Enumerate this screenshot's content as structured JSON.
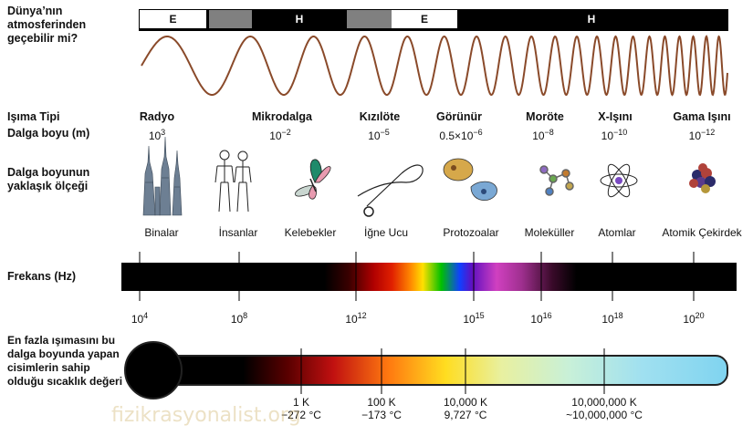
{
  "atmosphere": {
    "question": "Dünya’nın atmosferinden geçebilir mi?",
    "bands": [
      "E",
      "",
      "H",
      "",
      "E",
      "H"
    ]
  },
  "rows": {
    "radiation_type": "Işıma Tipi",
    "wavelength": "Dalga boyu (m)",
    "scale": "Dalga boyunun yaklaşık ölçeği",
    "frequency": "Frekans (Hz)",
    "temperature": "En fazla ışımasını bu dalga boyunda yapan cisimlerin sahip olduğu sıcaklık değeri"
  },
  "types": [
    {
      "name": "Radyo",
      "wl_base": "10",
      "wl_exp": "3",
      "icon": "skyscraper-icon",
      "caption": "Binalar"
    },
    {
      "name": "Mikrodalga",
      "wl_base": "10",
      "wl_exp": "−2",
      "icon": "human-figures-icon",
      "caption": "İnsanlar"
    },
    {
      "name": "Kızılöte",
      "wl_base": "10",
      "wl_exp": "−5",
      "icon": "butterfly-icon",
      "caption": "Kelebekler"
    },
    {
      "name": "Görünür",
      "wl_base": "0.5×10",
      "wl_exp": "−6",
      "icon": "needle-icon",
      "caption": "İğne Ucu"
    },
    {
      "name": "Moröte",
      "wl_base": "10",
      "wl_exp": "−8",
      "icon": "protozoa-icon",
      "caption": "Protozoalar"
    },
    {
      "name": "X-Işını",
      "wl_base": "10",
      "wl_exp": "−10",
      "icon": "molecule-icon",
      "caption": "Moleküller"
    },
    {
      "name": "Gama Işını",
      "wl_base": "10",
      "wl_exp": "−12",
      "icon": "atom-icon",
      "caption": "Atomlar"
    },
    {
      "name": "",
      "wl_base": "",
      "wl_exp": "",
      "icon": "nucleus-icon",
      "caption": "Atomik Çekirdek"
    }
  ],
  "frequencies": [
    {
      "base": "10",
      "exp": "4"
    },
    {
      "base": "10",
      "exp": "8"
    },
    {
      "base": "10",
      "exp": "12"
    },
    {
      "base": "10",
      "exp": "15"
    },
    {
      "base": "10",
      "exp": "16"
    },
    {
      "base": "10",
      "exp": "18"
    },
    {
      "base": "10",
      "exp": "20"
    }
  ],
  "temperatures": [
    {
      "k": "1 K",
      "c": "−272 °C"
    },
    {
      "k": "100 K",
      "c": "−173 °C"
    },
    {
      "k": "10,000 K",
      "c": "9,727 °C"
    },
    {
      "k": "10,000,000 K",
      "c": "~10,000,000 °C"
    }
  ],
  "watermark": "fizikrasyonalist.org",
  "colors": {
    "wave": "#8a4a2a",
    "band_open": "#ffffff",
    "band_blocked": "#000000",
    "band_partial": "#808080"
  }
}
